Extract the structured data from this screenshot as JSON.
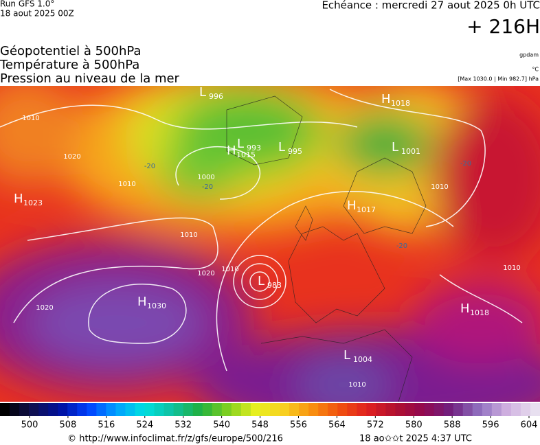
{
  "header": {
    "run": "Run GFS 1.0°",
    "date": "18 aout 2025 00Z",
    "echeance": "Echéance : mercredi 27 aout 2025 0h UTC",
    "lead": "+ 216H",
    "fields": [
      "Géopotentiel à 500hPa",
      "Température à 500hPa",
      "Pression au niveau de la mer"
    ],
    "units": [
      "gpdam",
      "°C",
      "[Max 1030.0 | Min 982.7] hPa"
    ]
  },
  "centers": [
    {
      "kind": "H",
      "value": 1018
    },
    {
      "kind": "L",
      "value": 996
    },
    {
      "kind": "L",
      "value": 993
    },
    {
      "kind": "H",
      "value": 1015
    },
    {
      "kind": "L",
      "value": 995
    },
    {
      "kind": "L",
      "value": 1001
    },
    {
      "kind": "H",
      "value": 1023
    },
    {
      "kind": "H",
      "value": 1017
    },
    {
      "kind": "L",
      "value": 983
    },
    {
      "kind": "H",
      "value": 1030
    },
    {
      "kind": "H",
      "value": 1018
    },
    {
      "kind": "L",
      "value": 1004
    }
  ],
  "isobar_labels": [
    1010,
    1020,
    1010,
    1020,
    1000,
    1010,
    1020,
    1010,
    1010,
    1010,
    1010
  ],
  "temperature_labels": [
    -20,
    -20,
    -20,
    -20
  ],
  "colorbar": {
    "ticks": [
      500,
      508,
      516,
      524,
      532,
      540,
      548,
      556,
      564,
      572,
      580,
      588,
      596,
      604
    ]
  },
  "footer": {
    "url": "© http://www.infoclimat.fr/z/gfs/europe/500/216",
    "stamp": "18 ao✩✩t 2025  4:37 UTC"
  }
}
